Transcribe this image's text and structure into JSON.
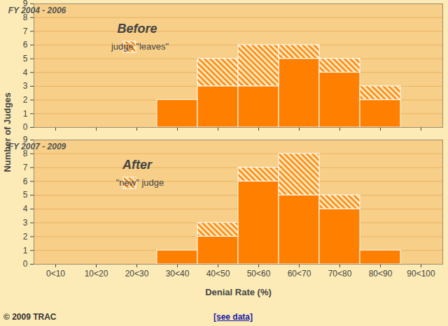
{
  "y_label": "Number of Judges",
  "footer": {
    "copyright": "© 2009 TRAC",
    "link": "[see data]"
  },
  "chart_data": [
    {
      "type": "bar",
      "stacked": true,
      "title": "FY 2004 - 2006",
      "annotation": "Before",
      "categories": [
        "0<10",
        "10<20",
        "20<30",
        "30<40",
        "40<50",
        "50<60",
        "60<70",
        "70<80",
        "80<90",
        "90<100"
      ],
      "series": [
        {
          "name": null,
          "color": "#ff8000",
          "values": [
            0,
            0,
            0,
            2,
            3,
            3,
            5,
            4,
            2,
            0
          ]
        },
        {
          "name": "judge \"leaves\"",
          "color": "#ff8000",
          "values": [
            0,
            0,
            0,
            0,
            2,
            3,
            1,
            1,
            1,
            0
          ]
        }
      ],
      "ylim": [
        0,
        9
      ],
      "yticks": [
        0,
        1,
        2,
        3,
        4,
        5,
        6,
        7,
        8,
        9
      ],
      "grid": true,
      "legend": "top-left",
      "tick_labels": "y"
    },
    {
      "type": "bar",
      "stacked": true,
      "title": "FY 2007 - 2009",
      "annotation": "After",
      "x_label": "Denial Rate (%)",
      "categories": [
        "0<10",
        "10<20",
        "20<30",
        "30<40",
        "40<50",
        "50<60",
        "60<70",
        "70<80",
        "80<90",
        "90<100"
      ],
      "series": [
        {
          "name": null,
          "color": "#ff8000",
          "values": [
            0,
            0,
            0,
            1,
            2,
            6,
            5,
            4,
            1,
            0
          ]
        },
        {
          "name": "\"new\" judge",
          "color": "#ff8000",
          "values": [
            0,
            0,
            0,
            0,
            1,
            1,
            3,
            1,
            0,
            0
          ]
        }
      ],
      "ylim": [
        0,
        9
      ],
      "yticks": [
        0,
        1,
        2,
        3,
        4,
        5,
        6,
        7,
        8,
        9
      ],
      "grid": true,
      "legend": "top-left"
    }
  ]
}
